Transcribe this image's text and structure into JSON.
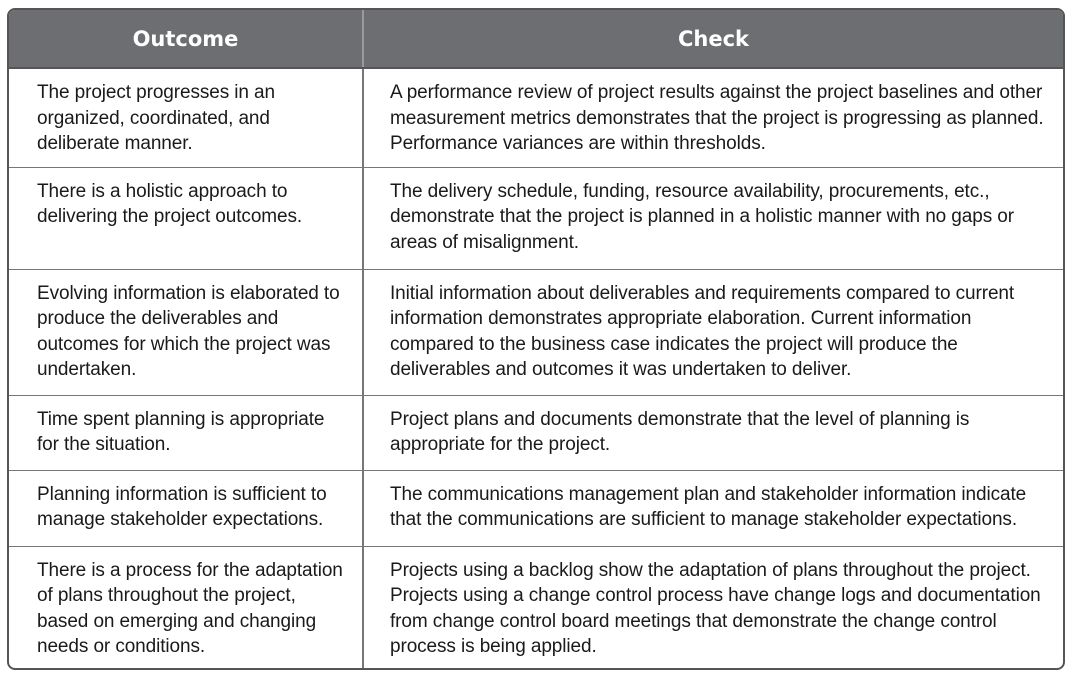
{
  "table": {
    "headers": [
      "Outcome",
      "Check"
    ],
    "rows": [
      {
        "outcome": "The project progresses in an organized, coordinated, and deliberate manner.",
        "check": "A performance review of project results against the project baselines and other measurement metrics demonstrates that the project is progressing as planned. Performance variances are within thresholds."
      },
      {
        "outcome": "There is a holistic approach to delivering the project outcomes.",
        "check": "The delivery schedule, funding, resource availability, procurements, etc., demonstrate that the project is planned in a holistic manner with no gaps or areas of misalignment."
      },
      {
        "outcome": "Evolving information is elaborated to produce the deliverables and outcomes for which the project was undertaken.",
        "check": "Initial information about deliverables and requirements compared to current information demonstrates appropriate elaboration. Current information compared to the business case indicates the project will produce the deliverables and outcomes it was undertaken to deliver."
      },
      {
        "outcome": "Time spent planning is appropriate for the situation.",
        "check": "Project plans and documents demonstrate that the level of planning is appropriate for the project."
      },
      {
        "outcome": "Planning information is sufficient to manage stakeholder expectations.",
        "check": "The communications management plan and stakeholder information indicate that the communications are sufficient to manage stakeholder expectations."
      },
      {
        "outcome": "There is a process for the adaptation of plans throughout the project, based on emerging and changing needs or conditions.",
        "check": "Projects using a backlog show the adaptation of plans throughout the project. Projects using a change control process have change logs and documentation from change control board meetings that demonstrate the change control process is being applied."
      }
    ]
  }
}
